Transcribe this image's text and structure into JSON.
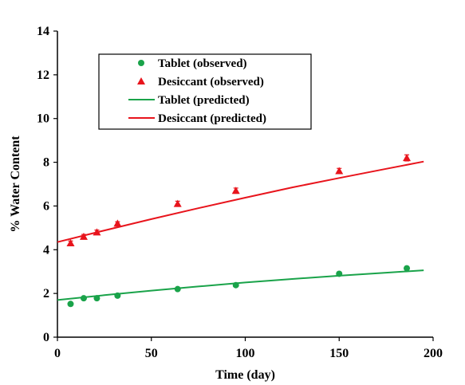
{
  "chart_data": {
    "type": "scatter",
    "title": "",
    "xlabel": "Time (day)",
    "ylabel": "% Water Content",
    "xlim": [
      0,
      200
    ],
    "ylim": [
      0,
      14
    ],
    "xticks": [
      "0",
      "50",
      "100",
      "150",
      "200"
    ],
    "yticks": [
      "0",
      "2",
      "4",
      "6",
      "8",
      "10",
      "12",
      "14"
    ],
    "grid": false,
    "legend_position": "top-left",
    "series": [
      {
        "name": "Tablet (observed)",
        "kind": "scatter",
        "marker": "circle",
        "color": "#1aa34a",
        "x": [
          7,
          14,
          21,
          32,
          64,
          95,
          150,
          186
        ],
        "y": [
          1.52,
          1.78,
          1.78,
          1.9,
          2.2,
          2.38,
          2.9,
          3.15
        ]
      },
      {
        "name": "Desiccant (observed)",
        "kind": "scatter",
        "marker": "triangle",
        "color": "#e8141c",
        "x": [
          7,
          14,
          21,
          32,
          64,
          95,
          150,
          186
        ],
        "y": [
          4.3,
          4.6,
          4.8,
          5.2,
          6.1,
          6.7,
          7.6,
          8.2
        ],
        "errors": [
          0.1,
          0.1,
          0.1,
          0.08,
          0.12,
          0.12,
          0.12,
          0.14
        ]
      },
      {
        "name": "Tablet (predicted)",
        "kind": "line",
        "color": "#1aa34a",
        "x": [
          0,
          25,
          50,
          75,
          100,
          125,
          150,
          175,
          195
        ],
        "y": [
          1.7,
          1.92,
          2.13,
          2.32,
          2.5,
          2.66,
          2.81,
          2.95,
          3.06
        ]
      },
      {
        "name": "Desiccant (predicted)",
        "kind": "line",
        "color": "#e8141c",
        "x": [
          0,
          25,
          50,
          75,
          100,
          125,
          150,
          175,
          195
        ],
        "y": [
          4.35,
          4.88,
          5.4,
          5.9,
          6.38,
          6.85,
          7.28,
          7.7,
          8.03
        ]
      }
    ]
  }
}
